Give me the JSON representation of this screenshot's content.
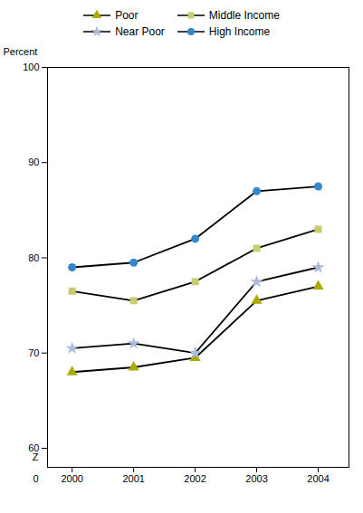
{
  "chart_data": {
    "type": "line",
    "x": [
      2000,
      2001,
      2002,
      2003,
      2004
    ],
    "series": [
      {
        "name": "Poor",
        "color": "#aaaa00",
        "marker": "triangle",
        "values": [
          68,
          68.5,
          69.5,
          75.5,
          77
        ]
      },
      {
        "name": "Near Poor",
        "color": "#aabbdd",
        "marker": "star",
        "values": [
          70.5,
          71,
          70,
          77.5,
          79
        ]
      },
      {
        "name": "Middle Income",
        "color": "#c8cc6e",
        "marker": "square",
        "values": [
          76.5,
          75.5,
          77.5,
          81,
          83
        ]
      },
      {
        "name": "High Income",
        "color": "#3388cc",
        "marker": "circle",
        "values": [
          79,
          79.5,
          82,
          87,
          87.5
        ]
      }
    ],
    "color": "#000000",
    "y_label": "Percent",
    "xlim": [
      1999.6,
      2004.5
    ],
    "xticks": [
      2000,
      2001,
      2002,
      2003,
      2004
    ],
    "ylim": [
      58,
      100
    ],
    "yticks": [
      60,
      70,
      80,
      90,
      100
    ],
    "annotations": [
      {
        "text": "Z"
      },
      {
        "text": "0"
      }
    ],
    "grid": false
  }
}
